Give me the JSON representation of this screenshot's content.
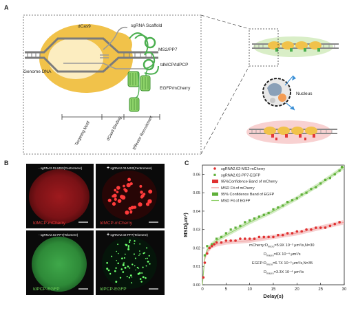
{
  "panel_a": {
    "label": "A",
    "labels": {
      "dcas9": "dCas9",
      "sgrna_scaffold": "sgRNA Scaffold",
      "ms2_pp7": "MS2/PP7",
      "genome_dna": "Genome DNA",
      "tdmcp": "tdMCP/tdPCP",
      "egfp": "EGFP/mCherry",
      "targeting_motif": "Targeting Motif",
      "dcas9_binding": "dCas9 Binding",
      "effector_recruitment": "Effector Recruitment",
      "nucleus": "Nucleus"
    },
    "colors": {
      "dcas9": "#f1c24a",
      "green": "#6fbe44",
      "red": "#e23a3a",
      "blue": "#3a8fd6"
    }
  },
  "panel_b": {
    "label": "B",
    "tiles": [
      {
        "tag": "-",
        "title": "sgRNA2.02-MS2(Centromere)",
        "caption": "tdMCP-mCherry"
      },
      {
        "tag": "+",
        "title": "sgRNA2.02-MS2(Centromere)",
        "caption": "tdMCP-mCherry"
      },
      {
        "tag": "-",
        "title": "sgRNA2.02-PP7(Telomere)",
        "caption": "tdPCP-EGFP"
      },
      {
        "tag": "+",
        "title": "sgRNA2.02-PP7(Telomere)",
        "caption": "tdPCP-EGFP"
      }
    ]
  },
  "panel_c": {
    "label": "C",
    "legend": [
      {
        "key": "mch_pts",
        "text": "sgRNA2.02-MS2-mCherry"
      },
      {
        "key": "gfp_pts",
        "text": "sgRNA2.02-PP7-EGFP"
      },
      {
        "key": "mch_band",
        "text": "95%Confidence Band of mCherry"
      },
      {
        "key": "mch_fit",
        "text": "MSD  Fit of mCherry"
      },
      {
        "key": "gfp_band",
        "text": "95% Confidence Band of EGFP"
      },
      {
        "key": "gfp_fit",
        "text": "MSD Fit of EGFP"
      }
    ],
    "annotations": [
      "mCherry:D_micro=5.9X 10⁻³ μm²/s,N=30",
      "D_macro=0X 10⁻⁴ μm²/s",
      "EGFP:D_micro=6.7X 10⁻³ μm²/s,N=35",
      "D_macro=3.3X 10⁻⁴ μm²/s"
    ],
    "colors": {
      "mcherry": "#e03030",
      "egfp": "#5fb03a",
      "mch_band": "#f4c0c0",
      "gfp_band": "#c8e6b4"
    }
  },
  "chart_data": {
    "type": "scatter",
    "title": "",
    "xlabel": "Delay(s)",
    "ylabel": "MSD(μm²)",
    "xlim": [
      0,
      30
    ],
    "ylim": [
      0,
      0.065
    ],
    "xticks": [
      0,
      5,
      10,
      15,
      20,
      25,
      30
    ],
    "yticks": [
      0.0,
      0.01,
      0.02,
      0.03,
      0.04,
      0.05,
      0.06
    ],
    "grid": false,
    "legend_position": "top-left",
    "series": [
      {
        "name": "sgRNA2.02-MS2-mCherry",
        "marker": "circle",
        "x": [
          0.2,
          0.5,
          1,
          1.5,
          2,
          2.5,
          3,
          4,
          5,
          6,
          7,
          8,
          9,
          10,
          11,
          12,
          13,
          14,
          15,
          16,
          17,
          18,
          19,
          20,
          21,
          22,
          23,
          24,
          25,
          26,
          27,
          28,
          29
        ],
        "y": [
          0.004,
          0.012,
          0.017,
          0.02,
          0.021,
          0.022,
          0.023,
          0.023,
          0.024,
          0.024,
          0.024,
          0.025,
          0.025,
          0.025,
          0.025,
          0.026,
          0.026,
          0.026,
          0.026,
          0.027,
          0.027,
          0.028,
          0.028,
          0.029,
          0.029,
          0.03,
          0.03,
          0.031,
          0.031,
          0.031,
          0.032,
          0.033,
          0.034
        ]
      },
      {
        "name": "sgRNA2.02-PP7-EGFP",
        "marker": "square",
        "x": [
          0.5,
          1,
          2,
          3,
          4,
          5,
          6,
          7,
          8,
          9,
          10,
          11,
          12,
          13,
          14,
          15,
          16,
          17,
          18,
          19,
          20,
          21,
          22,
          23,
          24,
          25,
          26,
          27,
          28,
          29,
          29.5
        ],
        "y": [
          0.016,
          0.021,
          0.022,
          0.025,
          0.026,
          0.028,
          0.03,
          0.031,
          0.032,
          0.034,
          0.035,
          0.036,
          0.037,
          0.038,
          0.039,
          0.041,
          0.042,
          0.043,
          0.045,
          0.046,
          0.047,
          0.049,
          0.05,
          0.052,
          0.053,
          0.055,
          0.057,
          0.058,
          0.06,
          0.062,
          0.064
        ]
      },
      {
        "name": "MSD  Fit of mCherry",
        "type": "line",
        "x": [
          0,
          0.5,
          1,
          2,
          3,
          5,
          10,
          15,
          20,
          25,
          30
        ],
        "y": [
          0.0,
          0.014,
          0.018,
          0.021,
          0.022,
          0.023,
          0.024,
          0.026,
          0.028,
          0.031,
          0.034
        ]
      },
      {
        "name": "MSD Fit of EGFP",
        "type": "line",
        "x": [
          0,
          0.5,
          1,
          2,
          3,
          5,
          10,
          15,
          20,
          25,
          30
        ],
        "y": [
          0.0,
          0.015,
          0.019,
          0.022,
          0.024,
          0.027,
          0.034,
          0.04,
          0.047,
          0.055,
          0.064
        ]
      }
    ]
  }
}
